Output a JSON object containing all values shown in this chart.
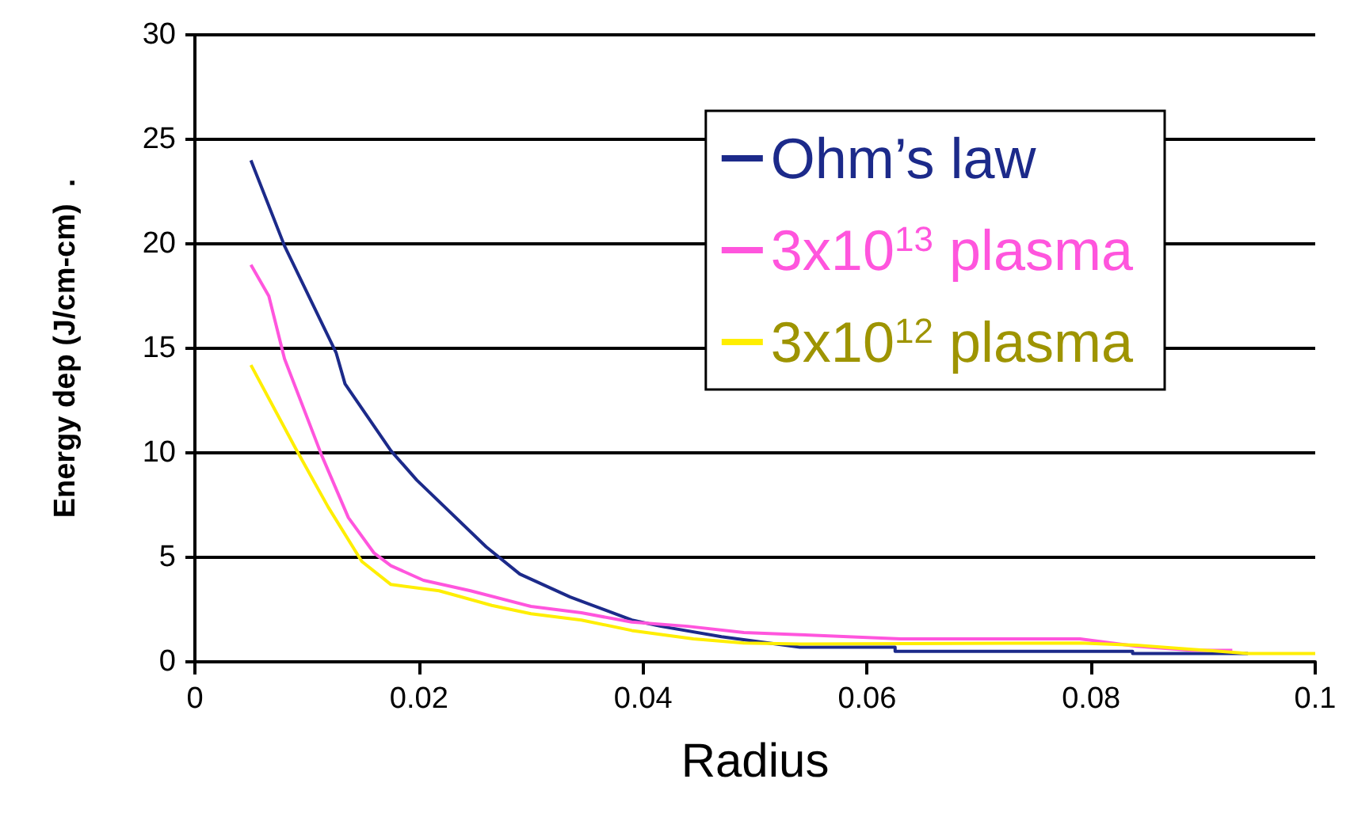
{
  "chart_data": {
    "type": "line",
    "xlabel": "Radius",
    "ylabel": "Energy dep (J/cm-cm)  .",
    "xlim": [
      0,
      0.1
    ],
    "xticks": [
      0,
      0.02,
      0.04,
      0.06,
      0.08,
      0.1
    ],
    "ylim": [
      0,
      30
    ],
    "yticks": [
      0,
      5,
      10,
      15,
      20,
      25,
      30
    ],
    "grid": "y",
    "legend": "top right",
    "marker": "none",
    "line_style": "solid",
    "series": [
      {
        "name": "Ohm’s law",
        "color": "#1c2a8a",
        "x": [
          0.005,
          0.008,
          0.0126,
          0.0134,
          0.0175,
          0.0198,
          0.026,
          0.029,
          0.0335,
          0.039,
          0.0416,
          0.047,
          0.054,
          0.0625,
          0.0625,
          0.0837,
          0.0837,
          0.094
        ],
        "values": [
          24.0,
          19.9,
          14.8,
          13.3,
          10.1,
          8.7,
          5.5,
          4.2,
          3.1,
          2.0,
          1.7,
          1.2,
          0.7,
          0.7,
          0.5,
          0.5,
          0.4,
          0.4
        ]
      },
      {
        "name": "3x10$^{13}$ plasma",
        "color": "#ff55dd",
        "x": [
          0.005,
          0.0066,
          0.008,
          0.0113,
          0.0137,
          0.016,
          0.0175,
          0.0204,
          0.0246,
          0.03,
          0.0345,
          0.039,
          0.044,
          0.049,
          0.054,
          0.063,
          0.079,
          0.084,
          0.089,
          0.0926
        ],
        "values": [
          19.0,
          17.5,
          14.5,
          9.9,
          6.9,
          5.2,
          4.6,
          3.9,
          3.4,
          2.65,
          2.35,
          1.9,
          1.7,
          1.4,
          1.3,
          1.1,
          1.1,
          0.75,
          0.55,
          0.55
        ]
      },
      {
        "name": "3x10$^{12}$ plasma",
        "color": "#ffee00",
        "x": [
          0.005,
          0.009,
          0.0119,
          0.0149,
          0.0175,
          0.0218,
          0.0265,
          0.03,
          0.0345,
          0.039,
          0.0445,
          0.049,
          0.054,
          0.079,
          0.084,
          0.089,
          0.094,
          0.1
        ],
        "values": [
          14.2,
          10.2,
          7.4,
          4.8,
          3.7,
          3.4,
          2.7,
          2.3,
          2.0,
          1.5,
          1.1,
          0.9,
          0.85,
          0.9,
          0.8,
          0.6,
          0.4,
          0.4
        ]
      }
    ]
  }
}
